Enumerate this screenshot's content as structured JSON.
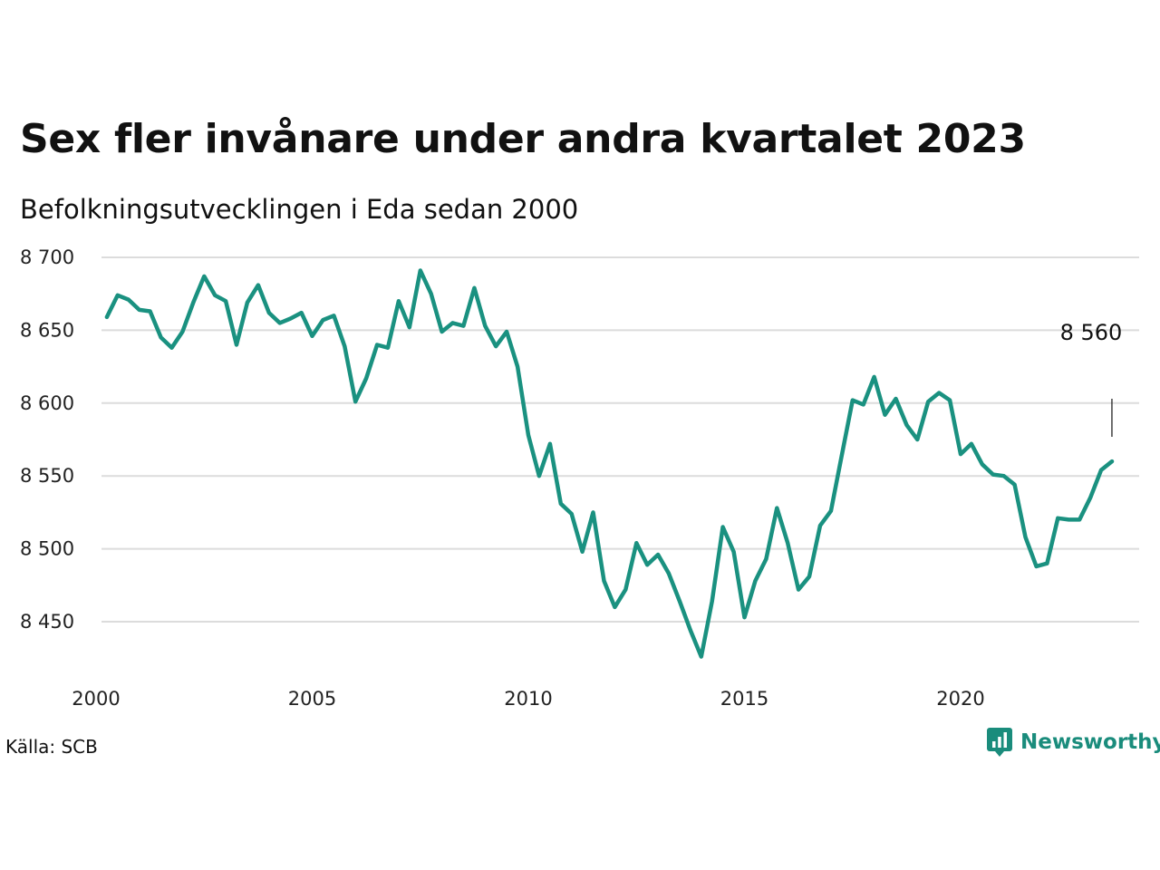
{
  "header": {
    "title": "Sex fler invånare under andra kvartalet 2023",
    "subtitle": "Befolkningsutvecklingen i Eda sedan 2000"
  },
  "footer": {
    "source": "Källa: SCB",
    "brand": "Newsworthy",
    "brand_color": "#1a8c7c"
  },
  "chart_data": {
    "type": "line",
    "title": "Sex fler invånare under andra kvartalet 2023",
    "subtitle": "Befolkningsutvecklingen i Eda sedan 2000",
    "xlabel": "",
    "ylabel": "",
    "line_color": "#1a9180",
    "grid": true,
    "ylim": [
      8420,
      8700
    ],
    "xlim": [
      2000,
      2024.25
    ],
    "y_ticks": [
      8450,
      8500,
      8550,
      8600,
      8650,
      8700
    ],
    "y_tick_labels": [
      "8 450",
      "8 500",
      "8 550",
      "8 600",
      "8 650",
      "8 700"
    ],
    "x_ticks": [
      2000,
      2005,
      2010,
      2015,
      2020
    ],
    "x_tick_labels": [
      "2000",
      "2005",
      "2010",
      "2015",
      "2020"
    ],
    "last_value_label": "8 560",
    "series": [
      {
        "x": [
          2000.25,
          2000.5,
          2000.75,
          2001,
          2001.25,
          2001.5,
          2001.75,
          2002,
          2002.25,
          2002.5,
          2002.75,
          2003,
          2003.25,
          2003.5,
          2003.75,
          2004,
          2004.25,
          2004.5,
          2004.75,
          2005,
          2005.25,
          2005.5,
          2005.75,
          2006,
          2006.25,
          2006.5,
          2006.75,
          2007,
          2007.25,
          2007.5,
          2007.75,
          2008,
          2008.25,
          2008.5,
          2008.75,
          2009,
          2009.25,
          2009.5,
          2009.75,
          2010,
          2010.25,
          2010.5,
          2010.75,
          2011,
          2011.25,
          2011.5,
          2011.75,
          2012,
          2012.25,
          2012.5,
          2012.75,
          2013,
          2013.25,
          2013.5,
          2013.75,
          2014,
          2014.25,
          2014.5,
          2014.75,
          2015,
          2015.25,
          2015.5,
          2015.75,
          2016,
          2016.25,
          2016.5,
          2016.75,
          2017,
          2017.25,
          2017.5,
          2017.75,
          2018,
          2018.25,
          2018.5,
          2018.75,
          2019,
          2019.25,
          2019.5,
          2019.75,
          2020,
          2020.25,
          2020.5,
          2020.75,
          2021,
          2021.25,
          2021.5,
          2021.75,
          2022,
          2022.25,
          2022.5,
          2022.75,
          2023,
          2023.25,
          2023.5
        ],
        "y": [
          8659,
          8674,
          8671,
          8664,
          8663,
          8645,
          8638,
          8649,
          8669,
          8687,
          8674,
          8670,
          8640,
          8669,
          8681,
          8662,
          8655,
          8658,
          8662,
          8646,
          8657,
          8660,
          8639,
          8601,
          8617,
          8640,
          8638,
          8670,
          8652,
          8691,
          8675,
          8649,
          8655,
          8653,
          8679,
          8653,
          8639,
          8649,
          8625,
          8578,
          8550,
          8572,
          8531,
          8524,
          8498,
          8525,
          8478,
          8460,
          8472,
          8504,
          8489,
          8496,
          8483,
          8464,
          8444,
          8426,
          8464,
          8515,
          8498,
          8453,
          8478,
          8493,
          8528,
          8504,
          8472,
          8481,
          8516,
          8526,
          8564,
          8602,
          8599,
          8618,
          8592,
          8603,
          8585,
          8575,
          8601,
          8607,
          8602,
          8565,
          8572,
          8558,
          8551,
          8550,
          8544,
          8508,
          8488,
          8490,
          8521,
          8520,
          8520,
          8535,
          8554,
          8560
        ]
      }
    ]
  }
}
